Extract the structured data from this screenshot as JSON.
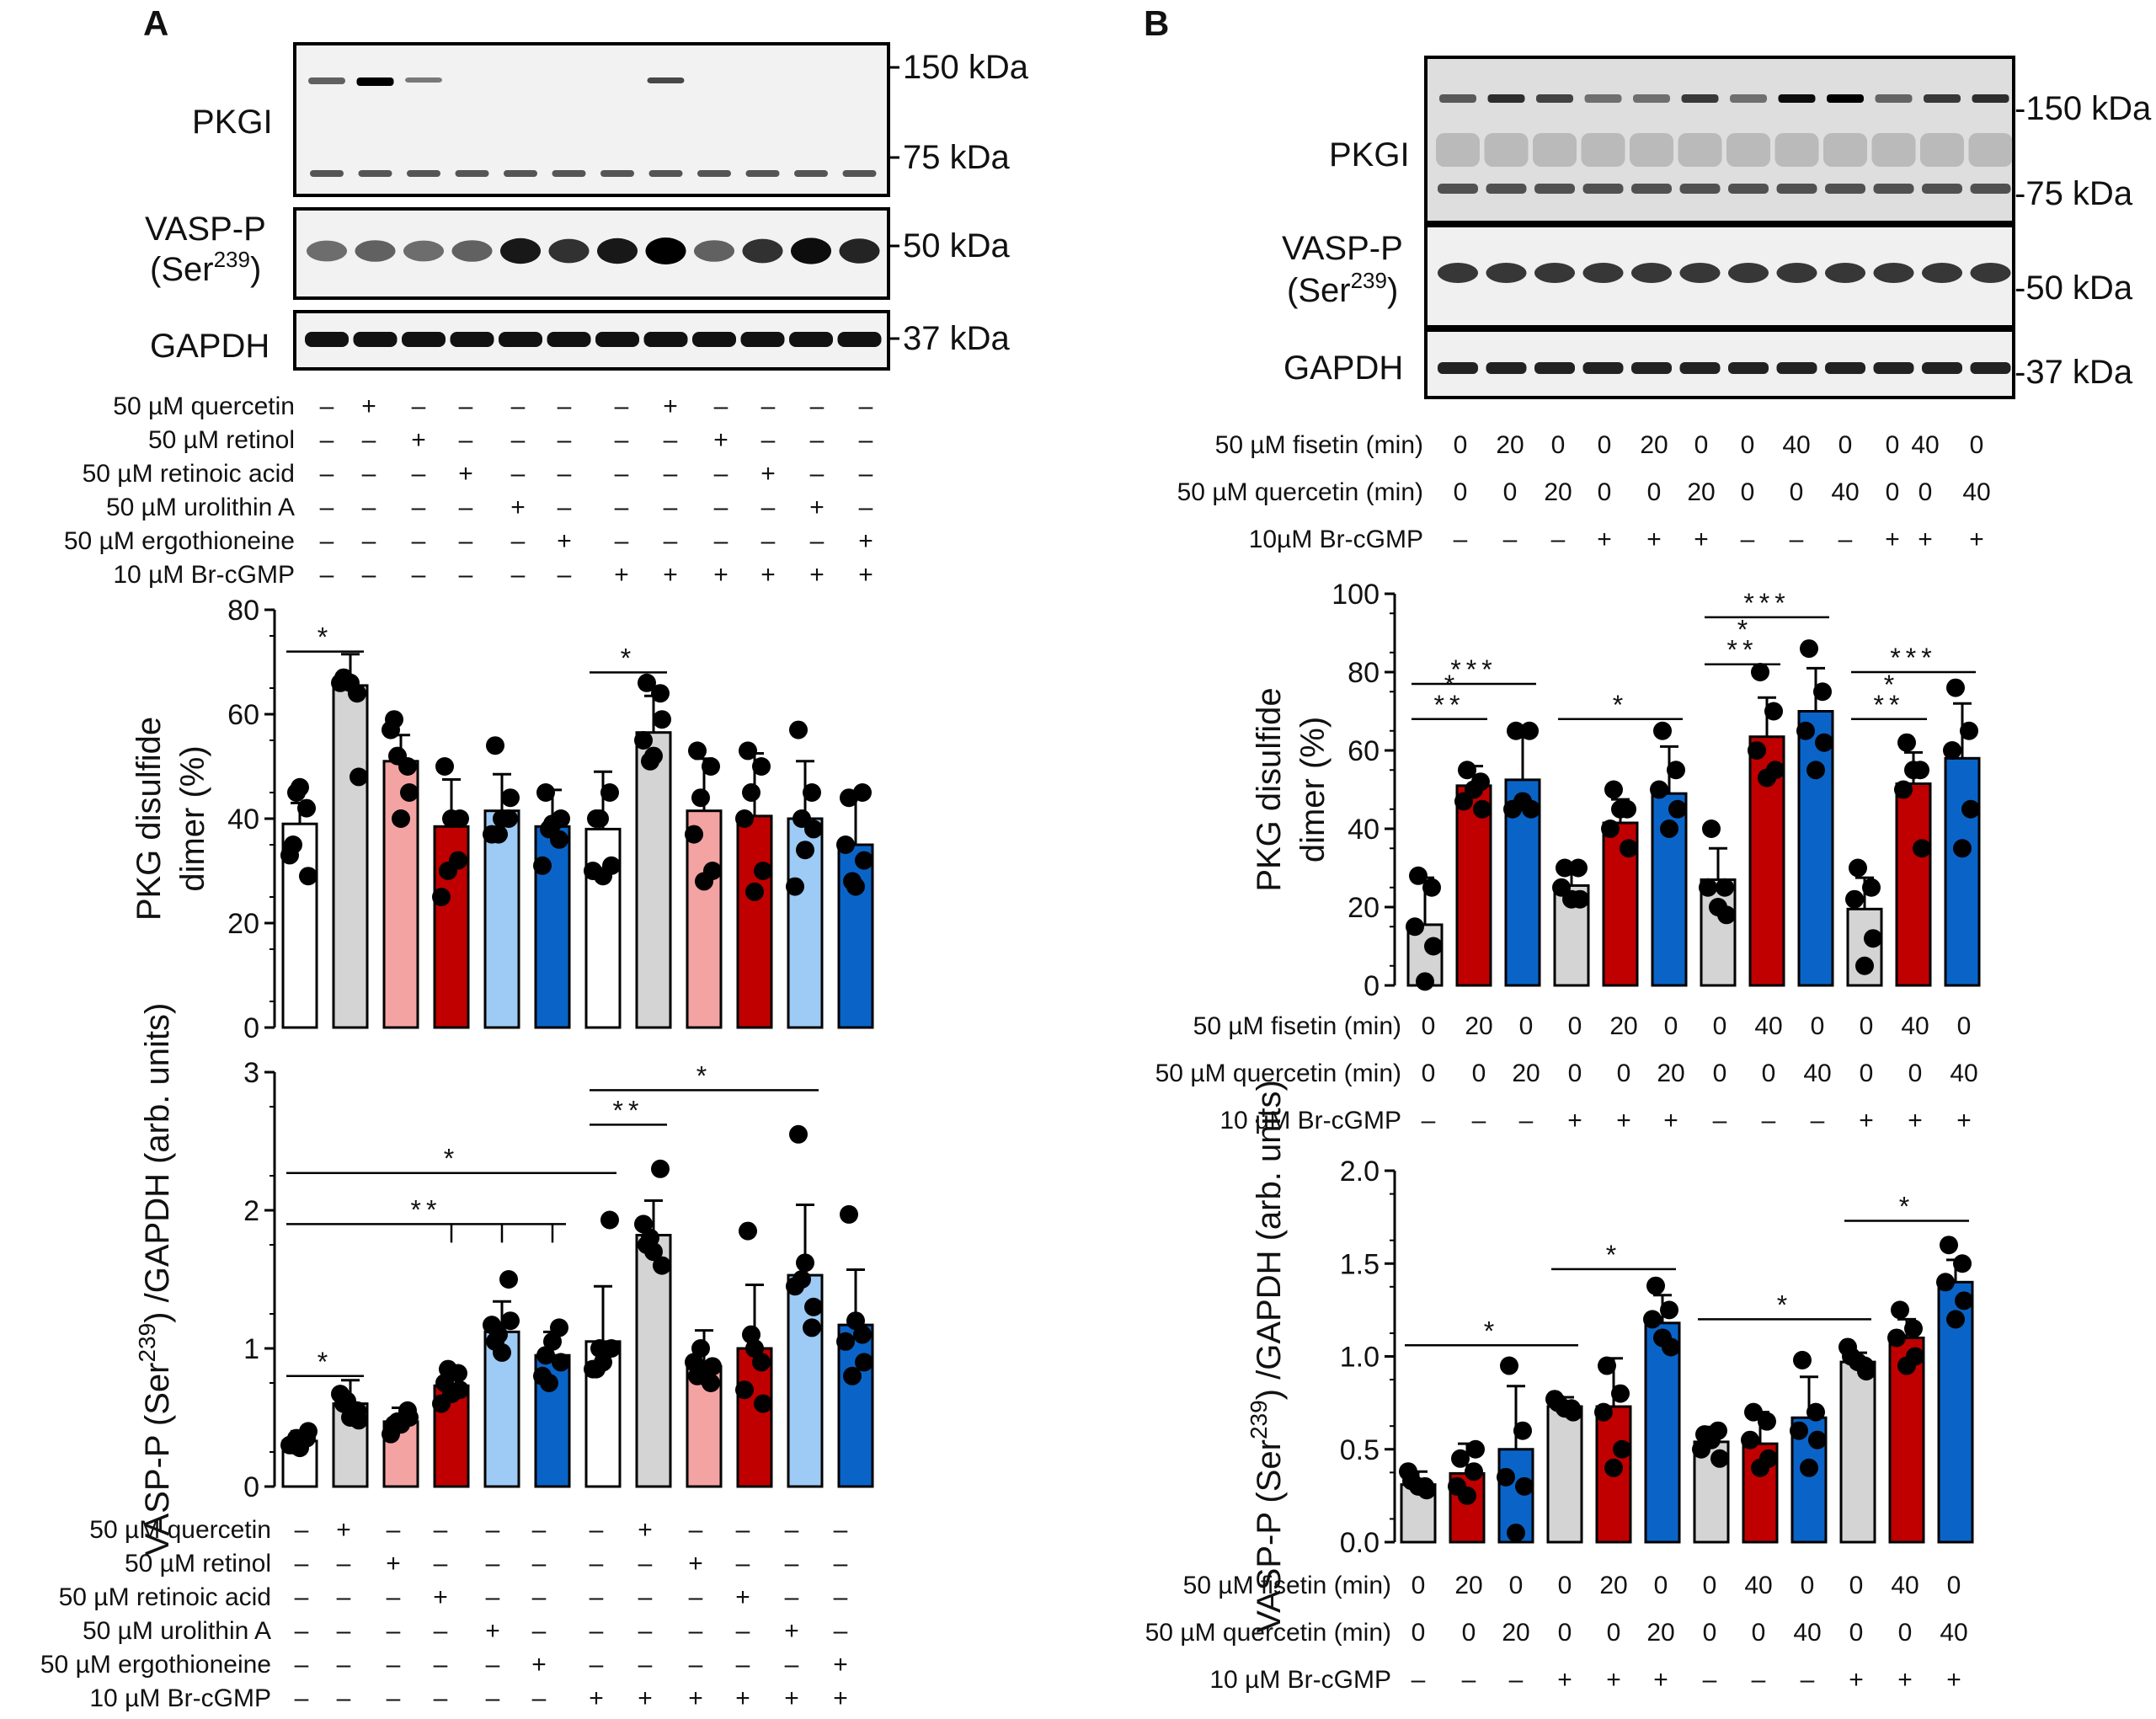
{
  "panelA": {
    "label": "A",
    "blot": {
      "rows": [
        "PKGI",
        "VASP-P",
        "(Ser",
        "239",
        ")",
        "GAPDH"
      ],
      "markers": [
        "150 kDa",
        "75 kDa",
        "50 kDa",
        "37 kDa"
      ]
    },
    "treatments": {
      "names": [
        "50 µM quercetin",
        "50 µM retinol",
        "50 µM retinoic acid",
        "50 µM urolithin A",
        "50 µM ergothioneine",
        "10 µM Br-cGMP"
      ],
      "matrix": [
        [
          "–",
          "+",
          "–",
          "–",
          "–",
          "–",
          "–",
          "+",
          "–",
          "–",
          "–",
          "–"
        ],
        [
          "–",
          "–",
          "+",
          "–",
          "–",
          "–",
          "–",
          "–",
          "+",
          "–",
          "–",
          "–"
        ],
        [
          "–",
          "–",
          "–",
          "+",
          "–",
          "–",
          "–",
          "–",
          "–",
          "+",
          "–",
          "–"
        ],
        [
          "–",
          "–",
          "–",
          "–",
          "+",
          "–",
          "–",
          "–",
          "–",
          "–",
          "+",
          "–"
        ],
        [
          "–",
          "–",
          "–",
          "–",
          "–",
          "+",
          "–",
          "–",
          "–",
          "–",
          "–",
          "+"
        ],
        [
          "–",
          "–",
          "–",
          "–",
          "–",
          "–",
          "+",
          "+",
          "+",
          "+",
          "+",
          "+"
        ]
      ]
    }
  },
  "panelB": {
    "label": "B",
    "blot": {
      "rows": [
        "PKGI",
        "VASP-P",
        "(Ser",
        "239",
        ")",
        "GAPDH"
      ],
      "markers": [
        "-150 kDa",
        "-75 kDa",
        "-50 kDa",
        "-37 kDa"
      ]
    },
    "treatments_top": {
      "names": [
        "50 µM fisetin (min)",
        "50 µM quercetin (min)",
        "10µM Br-cGMP"
      ],
      "matrix": [
        [
          "0",
          "20",
          "0",
          "0",
          "20",
          "0",
          "0",
          "40",
          "0",
          "0",
          "40",
          "0"
        ],
        [
          "0",
          "0",
          "20",
          "0",
          "0",
          "20",
          "0",
          "0",
          "40",
          "0",
          "0",
          "40"
        ],
        [
          "–",
          "–",
          "–",
          "+",
          "+",
          "+",
          "–",
          "–",
          "–",
          "+",
          "+",
          "+"
        ]
      ]
    },
    "treatments_mid": {
      "names": [
        "50 µM fisetin (min)",
        "50 µM quercetin (min)",
        "10 µM Br-cGMP"
      ],
      "matrix": [
        [
          "0",
          "20",
          "0",
          "0",
          "20",
          "0",
          "0",
          "40",
          "0",
          "0",
          "40",
          "0"
        ],
        [
          "0",
          "0",
          "20",
          "0",
          "0",
          "20",
          "0",
          "0",
          "40",
          "0",
          "0",
          "40"
        ],
        [
          "–",
          "–",
          "–",
          "+",
          "+",
          "+",
          "–",
          "–",
          "–",
          "+",
          "+",
          "+"
        ]
      ]
    },
    "treatments_bot": {
      "names": [
        "50 µM fisetin (min)",
        "50 µM quercetin (min)",
        "10 µM Br-cGMP"
      ],
      "matrix": [
        [
          "0",
          "20",
          "0",
          "0",
          "20",
          "0",
          "0",
          "40",
          "0",
          "0",
          "40",
          "0"
        ],
        [
          "0",
          "0",
          "20",
          "0",
          "0",
          "20",
          "0",
          "0",
          "40",
          "0",
          "0",
          "40"
        ],
        [
          "–",
          "–",
          "–",
          "+",
          "+",
          "+",
          "–",
          "–",
          "–",
          "+",
          "+",
          "+"
        ]
      ]
    }
  },
  "chart_data": [
    {
      "id": "A1",
      "type": "bar",
      "ylabel": [
        "PKG disulfide",
        "dimer (%)"
      ],
      "ylim": [
        0,
        80
      ],
      "yticks": [
        "0",
        "20",
        "40",
        "60",
        "80"
      ],
      "values": [
        39,
        65.5,
        51,
        38.5,
        41.5,
        38.5,
        38,
        56.5,
        41.5,
        40.5,
        40,
        35
      ],
      "errors": [
        4,
        6,
        5,
        9,
        7,
        7,
        11,
        7,
        10,
        12,
        11,
        9
      ],
      "colors": [
        "#ffffff",
        "#d4d4d4",
        "#f4a3a3",
        "#c00000",
        "#9ecbf5",
        "#0a64c8",
        "#ffffff",
        "#d4d4d4",
        "#f4a3a3",
        "#c00000",
        "#9ecbf5",
        "#0a64c8"
      ],
      "points": [
        [
          35,
          42,
          33,
          29,
          46,
          45
        ],
        [
          67,
          64,
          66,
          48,
          66
        ],
        [
          59,
          50,
          57,
          45,
          40,
          52
        ],
        [
          50,
          32,
          25,
          40,
          40,
          30
        ],
        [
          54,
          40,
          37,
          44,
          40,
          37
        ],
        [
          45,
          36,
          31,
          40,
          39,
          38
        ],
        [
          40,
          45,
          30,
          31,
          29,
          40
        ],
        [
          66,
          64,
          55,
          59,
          52,
          51
        ],
        [
          53,
          50,
          37,
          30,
          28,
          44
        ],
        [
          53,
          50,
          40,
          30,
          26,
          45
        ],
        [
          57,
          45,
          27,
          38,
          34,
          40
        ],
        [
          44,
          45,
          35,
          32,
          27,
          28
        ]
      ],
      "sig": [
        {
          "from": 0,
          "to": 1,
          "y": 72,
          "label": "*"
        },
        {
          "from": 6,
          "to": 7,
          "y": 68,
          "label": "*"
        }
      ]
    },
    {
      "id": "A2",
      "type": "bar",
      "ylabel": [
        "VASP-P (Ser",
        "239",
        ") /GAPDH (arb. units)"
      ],
      "ylim": [
        0,
        3
      ],
      "yticks": [
        "0",
        "1",
        "2",
        "3"
      ],
      "values": [
        0.33,
        0.6,
        0.47,
        0.73,
        1.12,
        0.95,
        1.05,
        1.82,
        0.87,
        1.0,
        1.53,
        1.17
      ],
      "errors": [
        0.07,
        0.17,
        0.1,
        0.14,
        0.22,
        0.17,
        0.4,
        0.25,
        0.26,
        0.46,
        0.51,
        0.4
      ],
      "colors": [
        "#ffffff",
        "#d4d4d4",
        "#f4a3a3",
        "#c00000",
        "#9ecbf5",
        "#0a64c8",
        "#ffffff",
        "#d4d4d4",
        "#f4a3a3",
        "#c00000",
        "#9ecbf5",
        "#0a64c8"
      ],
      "points": [
        [
          0.3,
          0.35,
          0.3,
          0.4,
          0.28,
          0.35
        ],
        [
          0.6,
          0.55,
          0.67,
          0.48,
          0.5,
          0.62
        ],
        [
          0.45,
          0.55,
          0.38,
          0.5,
          0.45,
          0.47
        ],
        [
          0.75,
          0.82,
          0.6,
          0.7,
          0.67,
          0.85
        ],
        [
          1.05,
          1.5,
          1.17,
          1.2,
          0.97,
          1.1
        ],
        [
          0.95,
          1.15,
          0.8,
          0.9,
          1.05,
          0.75
        ],
        [
          0.85,
          1.93,
          0.85,
          1.0,
          0.9,
          1.0
        ],
        [
          1.75,
          2.3,
          1.9,
          1.6,
          1.7,
          1.8
        ],
        [
          0.8,
          0.75,
          0.9,
          0.87,
          0.8,
          1.0
        ],
        [
          1.85,
          0.9,
          0.7,
          0.6,
          1.0,
          1.1
        ],
        [
          2.55,
          1.15,
          1.45,
          1.3,
          1.62,
          1.5
        ],
        [
          1.97,
          1.1,
          1.05,
          0.9,
          1.2,
          0.8
        ]
      ],
      "sig": [
        {
          "from": 0,
          "to": 1,
          "y": 0.8,
          "label": "*"
        },
        {
          "from": 6,
          "to": 7,
          "y": 2.62,
          "label": "**"
        },
        {
          "from": 6,
          "to": 10,
          "y": 2.87,
          "label": "*"
        },
        {
          "from": 0,
          "to": 6,
          "y": 2.27,
          "label": "*"
        },
        {
          "from": 0,
          "to": 5,
          "y": 1.9,
          "label": "**",
          "drops": [
            3,
            4,
            5
          ]
        }
      ]
    },
    {
      "id": "B1",
      "type": "bar",
      "ylabel": [
        "PKG disulfide",
        "dimer (%)"
      ],
      "ylim": [
        0,
        100
      ],
      "yticks": [
        "0",
        "20",
        "40",
        "60",
        "80",
        "100"
      ],
      "values": [
        15.5,
        51,
        52.5,
        25.5,
        41.5,
        49,
        27,
        63.5,
        70,
        19.5,
        51.5,
        58
      ],
      "errors": [
        12,
        5,
        12,
        4,
        6,
        12,
        8,
        10,
        11,
        8,
        8,
        14
      ],
      "colors": [
        "#d4d4d4",
        "#c00000",
        "#0a64c8",
        "#d4d4d4",
        "#c00000",
        "#0a64c8",
        "#d4d4d4",
        "#c00000",
        "#0a64c8",
        "#d4d4d4",
        "#c00000",
        "#0a64c8"
      ],
      "points": [
        [
          28,
          25,
          15,
          10,
          1
        ],
        [
          55,
          52,
          47,
          45,
          50
        ],
        [
          65,
          65,
          45,
          45,
          47
        ],
        [
          30,
          30,
          25,
          22,
          22
        ],
        [
          50,
          45,
          40,
          35,
          45
        ],
        [
          65,
          55,
          50,
          45,
          40
        ],
        [
          40,
          25,
          25,
          18,
          20
        ],
        [
          80,
          70,
          60,
          55,
          53
        ],
        [
          86,
          75,
          65,
          62,
          55
        ],
        [
          30,
          25,
          22,
          12,
          5
        ],
        [
          62,
          55,
          50,
          35,
          55
        ],
        [
          76,
          65,
          60,
          45,
          35
        ]
      ],
      "sig": [
        {
          "from": 0,
          "to": 1,
          "y": 68,
          "label": "**",
          "label2": "*"
        },
        {
          "from": 0,
          "to": 2,
          "y": 77,
          "label": "***"
        },
        {
          "from": 3,
          "to": 5,
          "y": 68,
          "label": "*"
        },
        {
          "from": 6,
          "to": 7,
          "y": 82,
          "label": "**",
          "label2": "*"
        },
        {
          "from": 6,
          "to": 8,
          "y": 94,
          "label": "***"
        },
        {
          "from": 9,
          "to": 10,
          "y": 68,
          "label": "**",
          "label2": "*"
        },
        {
          "from": 9,
          "to": 11,
          "y": 80,
          "label": "***"
        }
      ]
    },
    {
      "id": "B2",
      "type": "bar",
      "ylabel": [
        "VASP-P (Ser",
        "239",
        ") /GAPDH (arb. units)"
      ],
      "ylim": [
        0,
        2.0
      ],
      "yticks": [
        "0.0",
        "0.5",
        "1.0",
        "1.5",
        "2.0"
      ],
      "values": [
        0.31,
        0.37,
        0.5,
        0.73,
        0.73,
        1.18,
        0.54,
        0.53,
        0.67,
        0.97,
        1.1,
        1.4
      ],
      "errors": [
        0.07,
        0.16,
        0.34,
        0.05,
        0.26,
        0.15,
        0.08,
        0.17,
        0.22,
        0.05,
        0.1,
        0.12
      ],
      "colors": [
        "#d4d4d4",
        "#c00000",
        "#0a64c8",
        "#d4d4d4",
        "#c00000",
        "#0a64c8",
        "#d4d4d4",
        "#c00000",
        "#0a64c8",
        "#d4d4d4",
        "#c00000",
        "#0a64c8"
      ],
      "points": [
        [
          0.33,
          0.3,
          0.38,
          0.28,
          0.3
        ],
        [
          0.45,
          0.38,
          0.3,
          0.5,
          0.25
        ],
        [
          0.95,
          0.6,
          0.35,
          0.3,
          0.05
        ],
        [
          0.75,
          0.72,
          0.77,
          0.7,
          0.72
        ],
        [
          0.95,
          0.8,
          0.7,
          0.5,
          0.4
        ],
        [
          1.38,
          1.25,
          1.2,
          1.05,
          1.1
        ],
        [
          0.58,
          0.6,
          0.5,
          0.45,
          0.55
        ],
        [
          0.7,
          0.65,
          0.55,
          0.45,
          0.4
        ],
        [
          0.98,
          0.7,
          0.6,
          0.55,
          0.4
        ],
        [
          1.0,
          0.95,
          1.05,
          0.92,
          0.97
        ],
        [
          1.25,
          1.15,
          1.1,
          1.0,
          0.95
        ],
        [
          1.6,
          1.5,
          1.4,
          1.3,
          1.2
        ]
      ],
      "sig": [
        {
          "from": 0,
          "to": 3,
          "y": 1.06,
          "label": "*"
        },
        {
          "from": 3,
          "to": 5,
          "y": 1.47,
          "label": "*"
        },
        {
          "from": 6,
          "to": 9,
          "y": 1.2,
          "label": "*"
        },
        {
          "from": 9,
          "to": 11,
          "y": 1.73,
          "label": "*"
        }
      ]
    }
  ]
}
